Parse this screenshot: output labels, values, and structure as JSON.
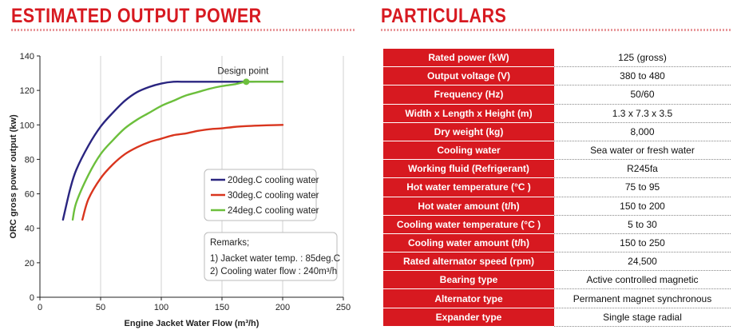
{
  "titles": {
    "left": "ESTIMATED OUTPUT POWER",
    "right": "PARTICULARS"
  },
  "chart_data": {
    "type": "line",
    "title": "ESTIMATED OUTPUT POWER",
    "xlabel": "Engine Jacket Water Flow (m³/h)",
    "ylabel": "ORC gross power output (kw)",
    "xlim": [
      0,
      250
    ],
    "ylim": [
      0,
      140
    ],
    "xticks": [
      0,
      50,
      100,
      150,
      200,
      250
    ],
    "yticks": [
      0,
      20,
      40,
      60,
      80,
      100,
      120,
      140
    ],
    "grid": "vertical",
    "legend_position": "right-middle",
    "series": [
      {
        "name": "20deg.C cooling water",
        "color": "#2a2580",
        "x": [
          19,
          25,
          30,
          40,
          50,
          60,
          70,
          80,
          90,
          100,
          110,
          120,
          130,
          140,
          150,
          170,
          200
        ],
        "y": [
          45,
          63,
          74,
          88,
          99,
          107,
          114,
          119,
          122,
          124,
          125,
          125,
          125,
          125,
          125,
          125,
          125
        ]
      },
      {
        "name": "30deg.C cooling water",
        "color": "#d9351e",
        "x": [
          35,
          40,
          50,
          60,
          70,
          80,
          90,
          100,
          110,
          120,
          130,
          140,
          150,
          160,
          170,
          180,
          190,
          200
        ],
        "y": [
          45,
          57,
          69,
          77,
          83,
          87,
          90,
          92,
          94,
          95,
          96.5,
          97.5,
          98,
          98.8,
          99.3,
          99.6,
          99.8,
          100
        ]
      },
      {
        "name": "24deg.C cooling water",
        "color": "#6cbf3c",
        "x": [
          27,
          30,
          40,
          50,
          60,
          70,
          80,
          90,
          100,
          110,
          120,
          130,
          140,
          150,
          160,
          170,
          180,
          200
        ],
        "y": [
          45,
          55,
          71,
          83,
          91,
          98,
          103,
          107,
          111,
          114,
          117,
          119,
          121,
          122.5,
          123.5,
          125,
          125,
          125
        ]
      }
    ],
    "annotations": [
      {
        "label": "Design point",
        "x": 170,
        "y": 125
      }
    ],
    "remarks": {
      "heading": "Remarks;",
      "lines": [
        "1) Jacket water temp. : 85deg.C",
        "2) Cooling water flow : 240m³/h"
      ]
    }
  },
  "particulars": [
    {
      "parameter": "Rated power (kW)",
      "value": "125 (gross)"
    },
    {
      "parameter": "Output voltage (V)",
      "value": "380 to 480"
    },
    {
      "parameter": "Frequency (Hz)",
      "value": "50/60"
    },
    {
      "parameter": "Width x Length x Height (m)",
      "value": "1.3 x 7.3 x 3.5"
    },
    {
      "parameter": "Dry weight (kg)",
      "value": "8,000"
    },
    {
      "parameter": "Cooling water",
      "value": "Sea water or fresh water"
    },
    {
      "parameter": "Working fluid (Refrigerant)",
      "value": "R245fa"
    },
    {
      "parameter": "Hot water temperature (°C )",
      "value": "75 to 95"
    },
    {
      "parameter": "Hot water amount (t/h)",
      "value": "150 to 200"
    },
    {
      "parameter": "Cooling water temperature (°C )",
      "value": "5 to 30"
    },
    {
      "parameter": "Cooling water amount (t/h)",
      "value": "150 to 250"
    },
    {
      "parameter": "Rated alternator speed (rpm)",
      "value": "24,500"
    },
    {
      "parameter": "Bearing type",
      "value": "Active controlled magnetic"
    },
    {
      "parameter": "Alternator type",
      "value": "Permanent magnet synchronous"
    },
    {
      "parameter": "Expander type",
      "value": "Single stage radial"
    }
  ],
  "colors": {
    "accent": "#d71920",
    "design_point": "#6cbf3c"
  }
}
